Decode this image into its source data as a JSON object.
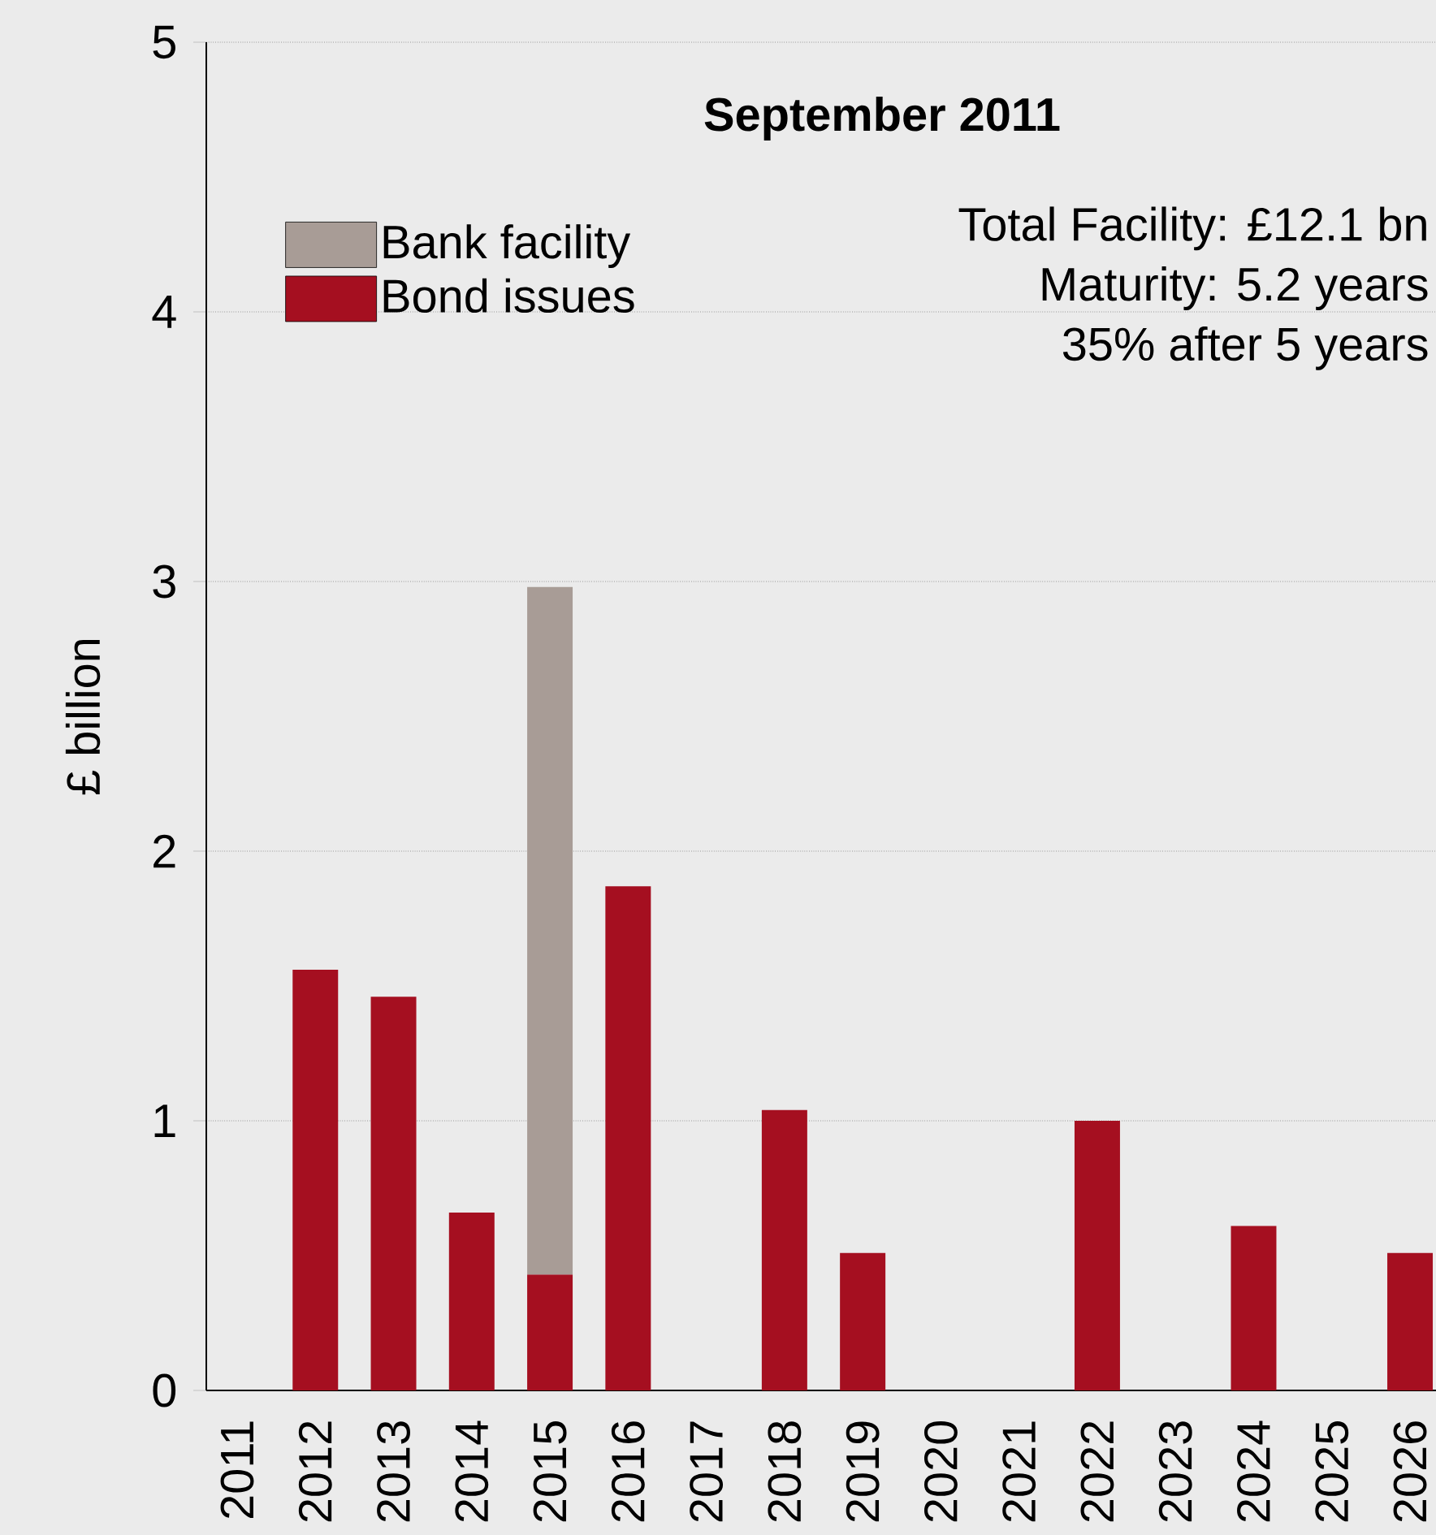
{
  "chart_data": {
    "type": "bar",
    "stacked": true,
    "title": "September 2011",
    "ylabel": "£ billion",
    "categories": [
      "2011",
      "2012",
      "2013",
      "2014",
      "2015",
      "2016",
      "2017",
      "2018",
      "2019",
      "2020",
      "2021",
      "2022",
      "2023",
      "2024",
      "2025",
      "2026"
    ],
    "series": [
      {
        "name": "Bond issues",
        "color": "#a50f20",
        "values": [
          null,
          1.56,
          1.46,
          0.66,
          0.43,
          1.87,
          null,
          1.04,
          0.51,
          null,
          null,
          1.0,
          null,
          0.61,
          null,
          0.51
        ]
      },
      {
        "name": "Bank facility",
        "color": "#a89c96",
        "values": [
          null,
          null,
          null,
          null,
          2.55,
          null,
          null,
          null,
          null,
          null,
          null,
          null,
          null,
          null,
          null,
          null
        ]
      }
    ],
    "ylim": [
      0,
      5
    ],
    "yticks": [
      0,
      1,
      2,
      3,
      4,
      5
    ],
    "grid": "y",
    "legend": "top left",
    "annotations": [
      "Total Facility:   £12.1 bn",
      "Maturity:            5.2 years",
      "35% after 5 years"
    ]
  }
}
